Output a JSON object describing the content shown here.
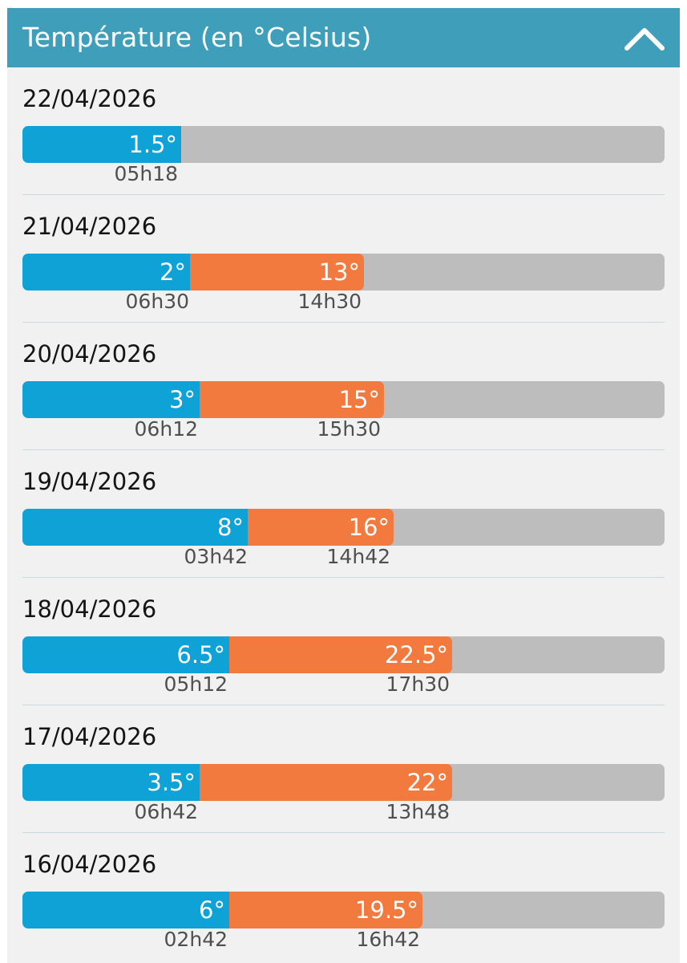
{
  "header": {
    "title": "Température (en °Celsius)"
  },
  "colors": {
    "header": "#3f9fbb",
    "min": "#0ea2d6",
    "max": "#f27a3e",
    "track": "#bdbdbd"
  },
  "icons": {
    "collapse": "chevron-up-icon"
  },
  "days": [
    {
      "date": "22/04/2026",
      "min_label": "1.5°",
      "min_time": "05h18"
    },
    {
      "date": "21/04/2026",
      "min_label": "2°",
      "min_time": "06h30",
      "max_label": "13°",
      "max_time": "14h30"
    },
    {
      "date": "20/04/2026",
      "min_label": "3°",
      "min_time": "06h12",
      "max_label": "15°",
      "max_time": "15h30"
    },
    {
      "date": "19/04/2026",
      "min_label": "8°",
      "min_time": "03h42",
      "max_label": "16°",
      "max_time": "14h42"
    },
    {
      "date": "18/04/2026",
      "min_label": "6.5°",
      "min_time": "05h12",
      "max_label": "22.5°",
      "max_time": "17h30"
    },
    {
      "date": "17/04/2026",
      "min_label": "3.5°",
      "min_time": "06h42",
      "max_label": "22°",
      "max_time": "13h48"
    },
    {
      "date": "16/04/2026",
      "min_label": "6°",
      "min_time": "02h42",
      "max_label": "19.5°",
      "max_time": "16h42"
    }
  ]
}
